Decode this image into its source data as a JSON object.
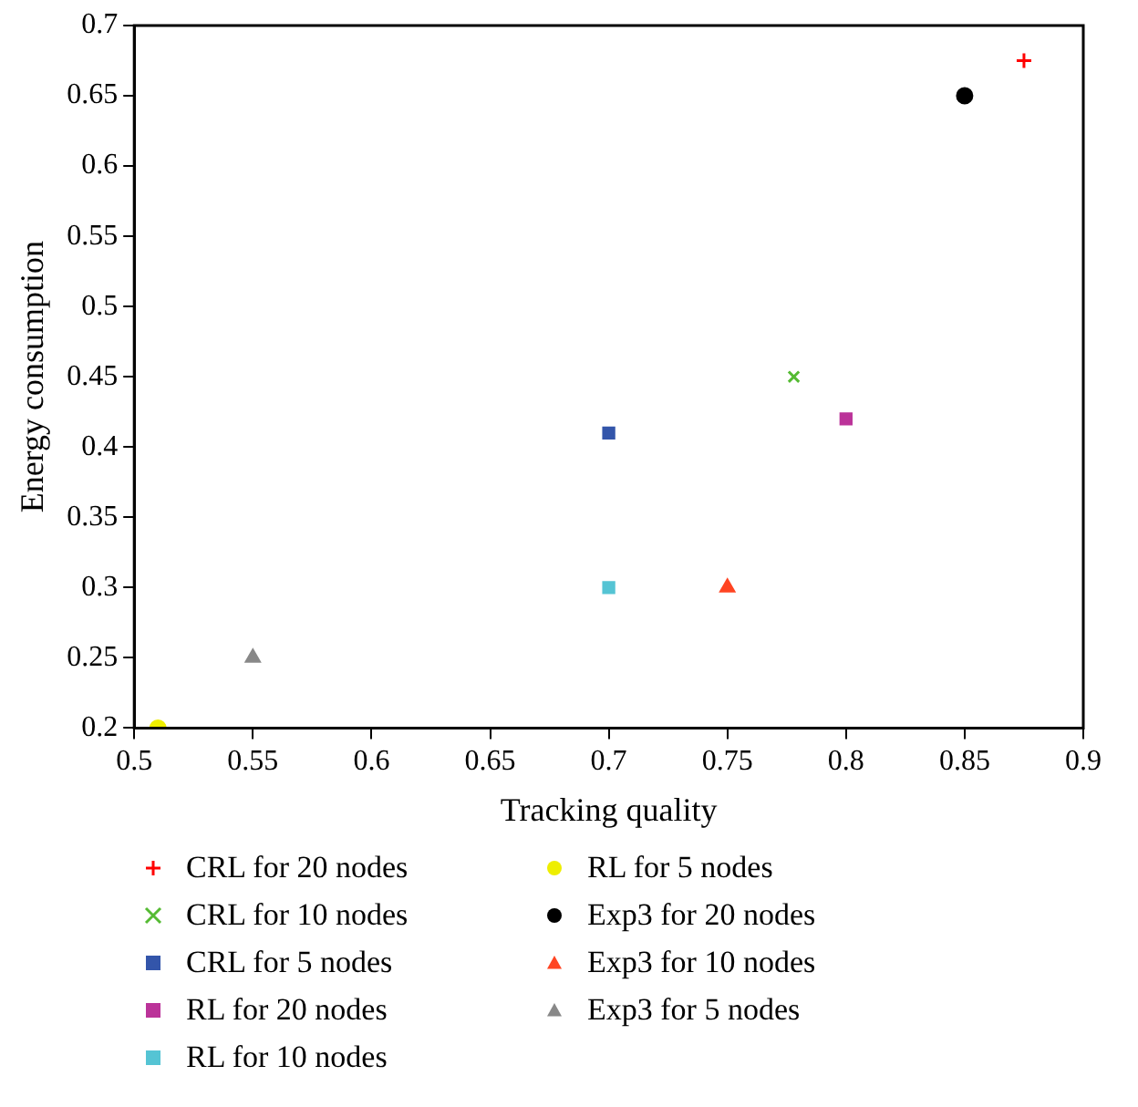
{
  "chart_data": {
    "type": "scatter",
    "xlabel": "Tracking quality",
    "ylabel": "Energy consumption",
    "xlim": [
      0.5,
      0.9
    ],
    "xticks": [
      0.5,
      0.55,
      0.6,
      0.65,
      0.7,
      0.75,
      0.8,
      0.85,
      0.9
    ],
    "ylim": [
      0.2,
      0.7
    ],
    "yticks": [
      0.2,
      0.25,
      0.3,
      0.35,
      0.4,
      0.45,
      0.5,
      0.55,
      0.6,
      0.65,
      0.7
    ],
    "legend": "bottom",
    "series": [
      {
        "name": "CRL for 20 nodes",
        "color": "#ff0000",
        "marker": "cross",
        "x": [
          0.875
        ],
        "values": [
          0.675
        ]
      },
      {
        "name": "CRL for 10 nodes",
        "color": "#55bb33",
        "marker": "x",
        "x": [
          0.778
        ],
        "values": [
          0.45
        ]
      },
      {
        "name": "CRL for 5 nodes",
        "color": "#3355aa",
        "marker": "square",
        "x": [
          0.7
        ],
        "values": [
          0.41
        ]
      },
      {
        "name": "RL for 20 nodes",
        "color": "#bb3399",
        "marker": "square",
        "x": [
          0.8
        ],
        "values": [
          0.42
        ]
      },
      {
        "name": "RL for 10 nodes",
        "color": "#55c4d4",
        "marker": "square",
        "x": [
          0.7
        ],
        "values": [
          0.3
        ]
      },
      {
        "name": "RL for 5 nodes",
        "color": "#eeee00",
        "marker": "circle",
        "x": [
          0.51
        ],
        "values": [
          0.2
        ]
      },
      {
        "name": "Exp3 for 20 nodes",
        "color": "#000000",
        "marker": "circle",
        "x": [
          0.85
        ],
        "values": [
          0.65
        ]
      },
      {
        "name": "Exp3 for 10 nodes",
        "color": "#ff4422",
        "marker": "triangle",
        "x": [
          0.75
        ],
        "values": [
          0.3
        ]
      },
      {
        "name": "Exp3 for 5 nodes",
        "color": "#888888",
        "marker": "triangle",
        "x": [
          0.55
        ],
        "values": [
          0.25
        ]
      }
    ]
  }
}
